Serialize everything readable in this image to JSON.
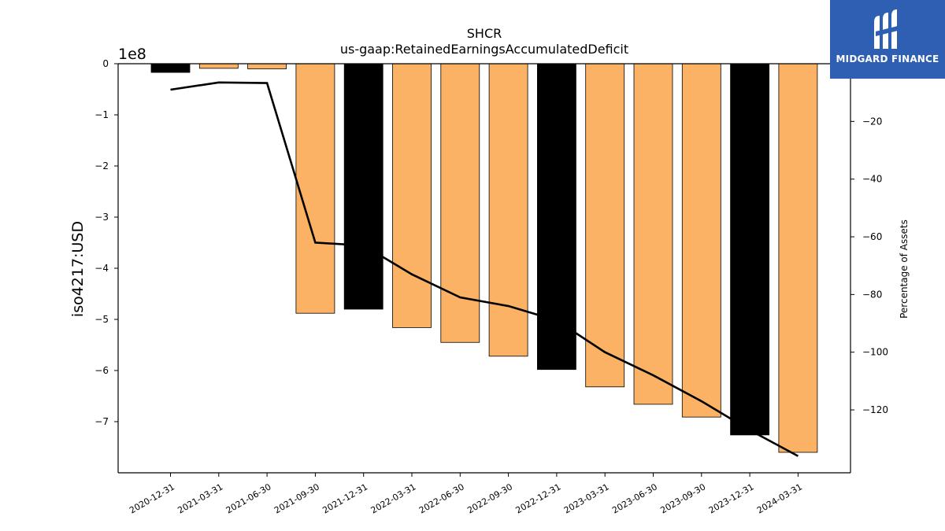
{
  "chart_data": {
    "type": "bar",
    "title": "SHCR",
    "subtitle": "us-gaap:RetainedEarningsAccumulatedDeficit",
    "ylabel": "iso4217:USD",
    "y_offset_label": "1e8",
    "y2label": "Percentage of Assets",
    "categories": [
      "2020-12-31",
      "2021-03-31",
      "2021-06-30",
      "2021-09-30",
      "2021-12-31",
      "2022-03-31",
      "2022-06-30",
      "2022-09-30",
      "2022-12-31",
      "2023-03-31",
      "2023-06-30",
      "2023-09-30",
      "2023-12-31",
      "2024-03-31"
    ],
    "values": [
      -0.17,
      -0.09,
      -0.1,
      -4.88,
      -4.8,
      -5.16,
      -5.45,
      -5.72,
      -5.98,
      -6.32,
      -6.66,
      -6.91,
      -7.26,
      -7.6
    ],
    "value_scale": 100000000,
    "bar_colors": [
      "#000000",
      "#fbb264",
      "#fbb264",
      "#fbb264",
      "#000000",
      "#fbb264",
      "#fbb264",
      "#fbb264",
      "#000000",
      "#fbb264",
      "#fbb264",
      "#fbb264",
      "#000000",
      "#fbb264"
    ],
    "ylim": [
      -8.0,
      0.0
    ],
    "yticks": [
      0,
      -1,
      -2,
      -3,
      -4,
      -5,
      -6,
      -7
    ],
    "series2": {
      "type": "line",
      "values": [
        -9,
        -6.5,
        -6.7,
        -62,
        -63,
        -73,
        -81,
        -84,
        -89,
        -100,
        -108,
        -117,
        -127,
        -136
      ],
      "color": "#000000"
    },
    "y2lim": [
      -141.8,
      0.0
    ],
    "y2ticks": [
      -20,
      -40,
      -60,
      -80,
      -100,
      -120
    ],
    "grid": false
  },
  "logo": {
    "text": "MIDGARD FINANCE",
    "color": "#2f5fb3"
  }
}
